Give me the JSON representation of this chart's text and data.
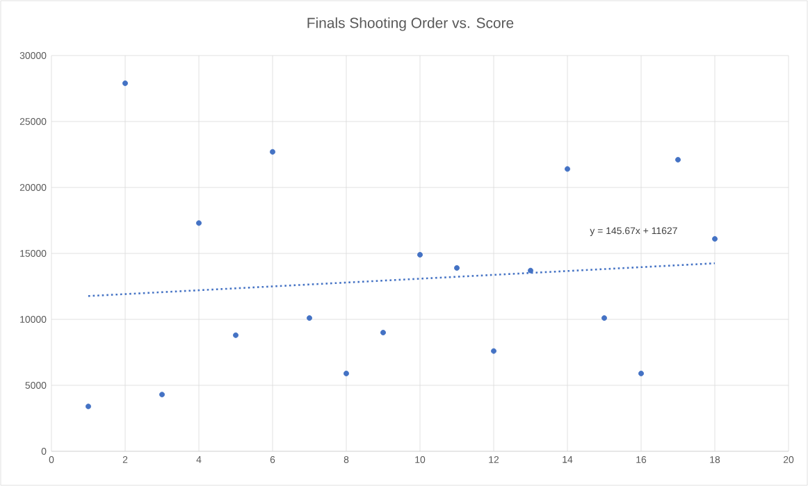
{
  "chart_data": {
    "type": "scatter",
    "title": "Finals Shooting Order vs. Score",
    "x": [
      1,
      2,
      3,
      4,
      5,
      6,
      7,
      8,
      9,
      10,
      11,
      12,
      13,
      14,
      15,
      16,
      17,
      18
    ],
    "series": [
      {
        "color": "#4472c4",
        "marker": "circle",
        "values": [
          3400,
          27900,
          4300,
          17300,
          8800,
          22700,
          10100,
          5900,
          9000,
          14900,
          13900,
          7600,
          13700,
          21400,
          10100,
          5900,
          22100,
          16100
        ]
      },
      {
        "type": "line",
        "color": "#4472c4",
        "line_style": "dotted",
        "marker": "none",
        "x": [
          1,
          18
        ],
        "values": [
          11770,
          14250
        ]
      }
    ],
    "annotations": [
      "y = 145.67x + 11627"
    ],
    "xlim": [
      0,
      20
    ],
    "xticks": [
      0,
      2,
      4,
      6,
      8,
      10,
      12,
      14,
      16,
      18,
      20
    ],
    "ylim": [
      0,
      30000
    ],
    "yticks": [
      0,
      5000,
      10000,
      15000,
      20000,
      25000,
      30000
    ],
    "grid": true
  }
}
